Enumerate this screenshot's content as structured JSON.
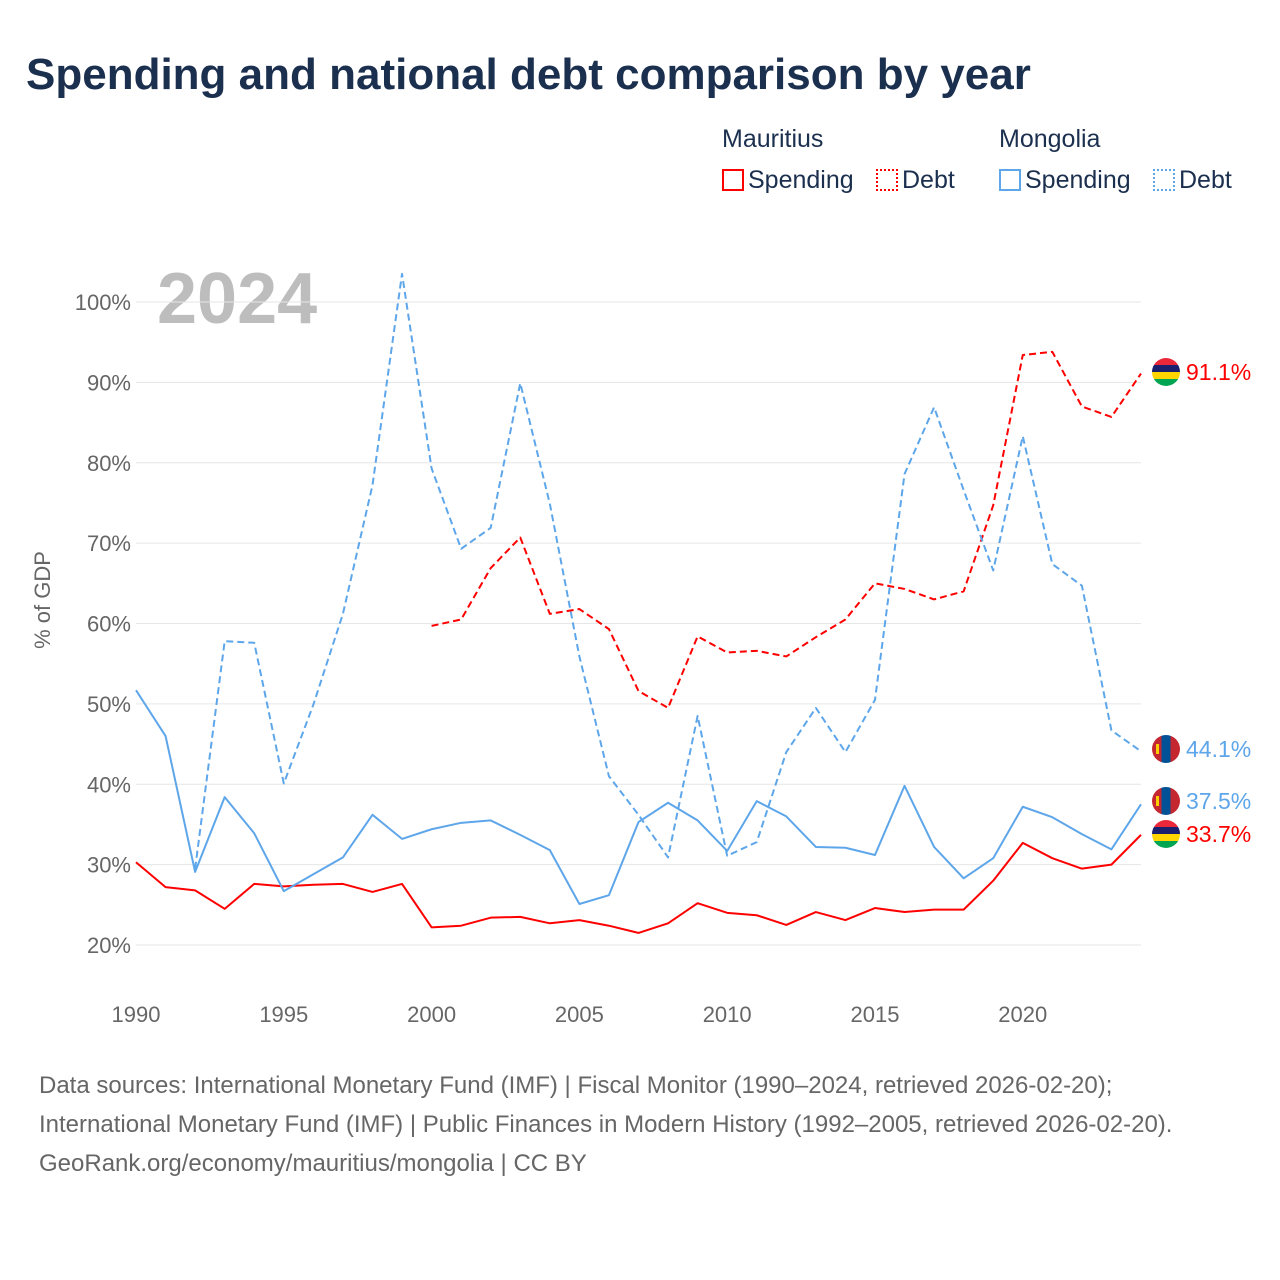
{
  "title": "Spending and national debt comparison by year",
  "legend": {
    "groups": [
      {
        "country": "Mauritius",
        "color": "#ff0000",
        "items": [
          "Spending",
          "Debt"
        ]
      },
      {
        "country": "Mongolia",
        "color": "#5ea6ea",
        "items": [
          "Spending",
          "Debt"
        ]
      }
    ]
  },
  "chart_data": {
    "type": "line",
    "title": "Spending and national debt comparison by year",
    "ylabel": "% of GDP",
    "xlabel": "",
    "year_label": "2024",
    "ylim": [
      20,
      100
    ],
    "xlim": [
      1990,
      2024
    ],
    "yticks": [
      "20%",
      "30%",
      "40%",
      "50%",
      "60%",
      "70%",
      "80%",
      "90%",
      "100%"
    ],
    "xticks": [
      "1990",
      "1995",
      "2000",
      "2005",
      "2010",
      "2015",
      "2020"
    ],
    "grid": true,
    "series": [
      {
        "name": "Mauritius Spending",
        "color": "#ff0000",
        "dashed": false,
        "start": 1990,
        "end_label": "33.7%",
        "values": [
          30.3,
          27.2,
          26.8,
          24.5,
          27.6,
          27.3,
          27.5,
          27.6,
          26.6,
          27.6,
          22.2,
          22.4,
          23.4,
          23.5,
          22.7,
          23.1,
          22.4,
          21.5,
          22.7,
          25.2,
          24.0,
          23.7,
          22.5,
          24.1,
          23.1,
          24.6,
          24.1,
          24.4,
          24.4,
          28.0,
          32.7,
          30.8,
          29.5,
          30.0,
          33.7
        ]
      },
      {
        "name": "Mauritius Debt",
        "color": "#ff0000",
        "dashed": true,
        "start": 2000,
        "end_label": "91.1%",
        "values": [
          59.7,
          60.5,
          66.9,
          70.7,
          61.2,
          61.8,
          59.3,
          51.6,
          49.5,
          58.4,
          56.4,
          56.6,
          55.9,
          58.3,
          60.5,
          65.0,
          64.3,
          63.0,
          64.0,
          74.7,
          93.4,
          93.8,
          87.0,
          85.7,
          91.1
        ]
      },
      {
        "name": "Mongolia Spending",
        "color": "#5ea6ea",
        "dashed": false,
        "start": 1990,
        "end_label": "37.5%",
        "values": [
          51.7,
          46.0,
          29.1,
          38.4,
          33.9,
          26.7,
          28.8,
          30.9,
          36.2,
          33.2,
          34.4,
          35.2,
          35.5,
          33.7,
          31.8,
          25.1,
          26.2,
          35.3,
          37.7,
          35.5,
          31.7,
          37.9,
          36.0,
          32.2,
          32.1,
          31.2,
          39.8,
          32.2,
          28.3,
          30.8,
          37.2,
          35.9,
          33.8,
          31.9,
          37.5
        ]
      },
      {
        "name": "Mongolia Debt",
        "color": "#5ea6ea",
        "dashed": true,
        "start": 1992,
        "end_label": "44.1%",
        "values": [
          29.5,
          57.8,
          57.6,
          40.1,
          49.9,
          61.2,
          77.2,
          103.5,
          79.3,
          69.3,
          71.9,
          89.9,
          74.9,
          55.9,
          41.0,
          36.2,
          30.9,
          48.5,
          31.1,
          32.8,
          44.0,
          49.5,
          44.0,
          50.5,
          78.6,
          86.9,
          76.6,
          66.6,
          83.3,
          67.4,
          64.7,
          46.7,
          44.1
        ]
      }
    ]
  },
  "footer": {
    "sources": "Data sources: International Monetary Fund (IMF) | Fiscal Monitor (1990–2024, retrieved 2026-02-20); International Monetary Fund (IMF) | Public Finances in Modern History (1992–2005, retrieved 2026-02-20).",
    "credit": "GeoRank.org/economy/mauritius/mongolia | CC BY"
  }
}
